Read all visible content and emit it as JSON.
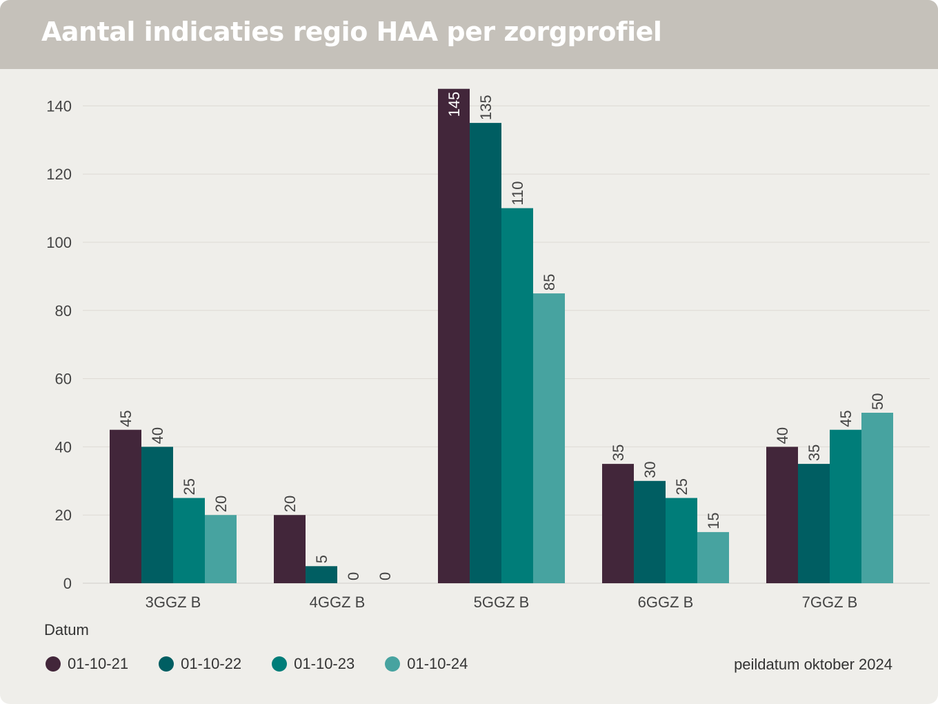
{
  "header": {
    "title": "Aantal indicaties regio HAA per zorgprofiel"
  },
  "chart_data": {
    "type": "bar",
    "title": "Aantal indicaties regio HAA per zorgprofiel",
    "xlabel": "",
    "ylabel": "",
    "categories": [
      "3GGZ B",
      "4GGZ B",
      "5GGZ B",
      "6GGZ B",
      "7GGZ B"
    ],
    "series": [
      {
        "name": "01-10-21",
        "color": "#42263a",
        "values": [
          45,
          20,
          145,
          35,
          40
        ]
      },
      {
        "name": "01-10-22",
        "color": "#005e62",
        "values": [
          40,
          5,
          135,
          30,
          35
        ]
      },
      {
        "name": "01-10-23",
        "color": "#007d79",
        "values": [
          25,
          0,
          110,
          25,
          45
        ]
      },
      {
        "name": "01-10-24",
        "color": "#47a3a0",
        "values": [
          20,
          0,
          85,
          15,
          50
        ]
      }
    ],
    "yticks": [
      0,
      20,
      40,
      60,
      80,
      100,
      120,
      140
    ],
    "ylim": [
      0,
      145
    ],
    "grid": true,
    "legend": {
      "title": "Datum",
      "placement": "bottom-left"
    }
  },
  "footer": {
    "note": "peildatum oktober 2024"
  }
}
